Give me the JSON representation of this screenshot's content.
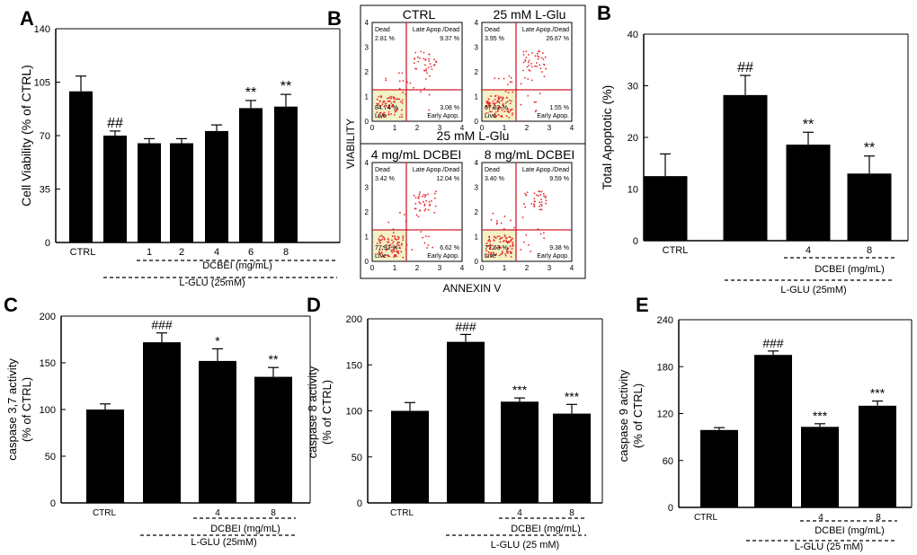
{
  "colors": {
    "bar": "#000000",
    "flow_dot": "#e8262b",
    "flow_gate": "#d01f2a",
    "flow_shade": "#f3f1c6"
  },
  "chart_data": [
    {
      "type": "bar",
      "panel": "A",
      "ylabel": "Cell Viability (% of CTRL)",
      "ylim": [
        0,
        140
      ],
      "yticks": [
        0,
        35,
        70,
        105,
        140
      ],
      "categories": [
        "CTRL",
        "",
        "1",
        "2",
        "4",
        "6",
        "8"
      ],
      "values": [
        99,
        70,
        65,
        65,
        73,
        88,
        89
      ],
      "errors": [
        10,
        3,
        3,
        3,
        4,
        5,
        8
      ],
      "annotations": [
        "",
        "##",
        "",
        "",
        "",
        "**",
        "**"
      ],
      "groups": [
        {
          "label": "DCBEI (mg/mL)"
        },
        {
          "label": "L-GLU (25mM)"
        }
      ]
    },
    {
      "type": "bar",
      "panel": "B",
      "ylabel": "Total Apoptotic (%)",
      "ylim": [
        0,
        40
      ],
      "yticks": [
        0,
        10,
        20,
        30,
        40
      ],
      "categories": [
        "CTRL",
        "",
        "4",
        "8"
      ],
      "values": [
        12.5,
        28.2,
        18.6,
        13
      ],
      "errors": [
        4.3,
        3.8,
        2.4,
        3.4
      ],
      "annotations": [
        "",
        "##",
        "**",
        "**"
      ],
      "groups": [
        {
          "label": "DCBEI (mg/mL)"
        },
        {
          "label": "L-GLU (25mM)"
        }
      ]
    },
    {
      "type": "bar",
      "panel": "C",
      "ylabel": [
        "caspase 3,7 activity",
        "(% of CTRL)"
      ],
      "ylim": [
        0,
        200
      ],
      "yticks": [
        0,
        50,
        100,
        150,
        200
      ],
      "categories": [
        "CTRL",
        "",
        "4",
        "8"
      ],
      "values": [
        100,
        172,
        152,
        135
      ],
      "errors": [
        6,
        10,
        13,
        10
      ],
      "annotations": [
        "",
        "###",
        "*",
        "**"
      ],
      "groups": [
        {
          "label": "DCBEI (mg/mL)"
        },
        {
          "label": "L-GLU (25mM)"
        }
      ]
    },
    {
      "type": "bar",
      "panel": "D",
      "ylabel": [
        "caspase 8 activity",
        "(% of CTRL)"
      ],
      "ylim": [
        0,
        200
      ],
      "yticks": [
        0,
        50,
        100,
        150,
        200
      ],
      "categories": [
        "CTRL",
        "",
        "4",
        "8"
      ],
      "values": [
        100,
        175,
        110,
        97
      ],
      "errors": [
        9,
        8,
        4,
        10
      ],
      "annotations": [
        "",
        "###",
        "***",
        "***"
      ],
      "groups": [
        {
          "label": "DCBEI (mg/mL)"
        },
        {
          "label": "L-GLU (25 mM)"
        }
      ]
    },
    {
      "type": "bar",
      "panel": "E",
      "ylabel": [
        "caspase 9 activity",
        "(% of CTRL)"
      ],
      "ylim": [
        0,
        240
      ],
      "yticks": [
        0,
        60,
        120,
        180,
        240
      ],
      "categories": [
        "CTRL",
        "",
        "4",
        "8"
      ],
      "values": [
        99,
        195,
        103,
        130
      ],
      "errors": [
        3,
        5,
        4,
        6
      ],
      "annotations": [
        "",
        "###",
        "***",
        "***"
      ],
      "groups": [
        {
          "label": "DCBEI (mg/mL)"
        },
        {
          "label": "L-GLU (25 mM)"
        }
      ]
    }
  ],
  "flow": {
    "ylabel": "VIABILITY",
    "xlabel": "ANNEXIN V",
    "middle_label": "25 mM L-Glu",
    "axis_ticks": [
      "0",
      "1",
      "2",
      "3",
      "4"
    ],
    "plots": [
      {
        "title": "CTRL",
        "dead": "Dead",
        "dead_pct": "2.81 %",
        "late": "Late Apop./Dead",
        "late_pct": "9.37 %",
        "live_pct": "84.74 %",
        "live": "Live",
        "early_pct": "3.08 %",
        "early": "Early Apop."
      },
      {
        "title": "25 mM L-Glu",
        "dead": "Dead",
        "dead_pct": "3.95 %",
        "late": "Late Apop./Dead",
        "late_pct": "26.67 %",
        "live_pct": "67.82 %",
        "live": "Live",
        "early_pct": "1.55 %",
        "early": "Early Apop."
      },
      {
        "title": "4 mg/mL DCBEI",
        "dead": "Dead",
        "dead_pct": "3.42 %",
        "late": "Late Apop./Dead",
        "late_pct": "12.04 %",
        "live_pct": "77.92 %",
        "live": "Live",
        "early_pct": "6.62 %",
        "early": "Early Apop."
      },
      {
        "title": "8 mg/mL DCBEI",
        "dead": "Dead",
        "dead_pct": "3.40 %",
        "late": "Late Apop./Dead",
        "late_pct": "9.59 %",
        "live_pct": "77.63 %",
        "live": "Live",
        "early_pct": "9.38 %",
        "early": "Early Apop."
      }
    ]
  }
}
